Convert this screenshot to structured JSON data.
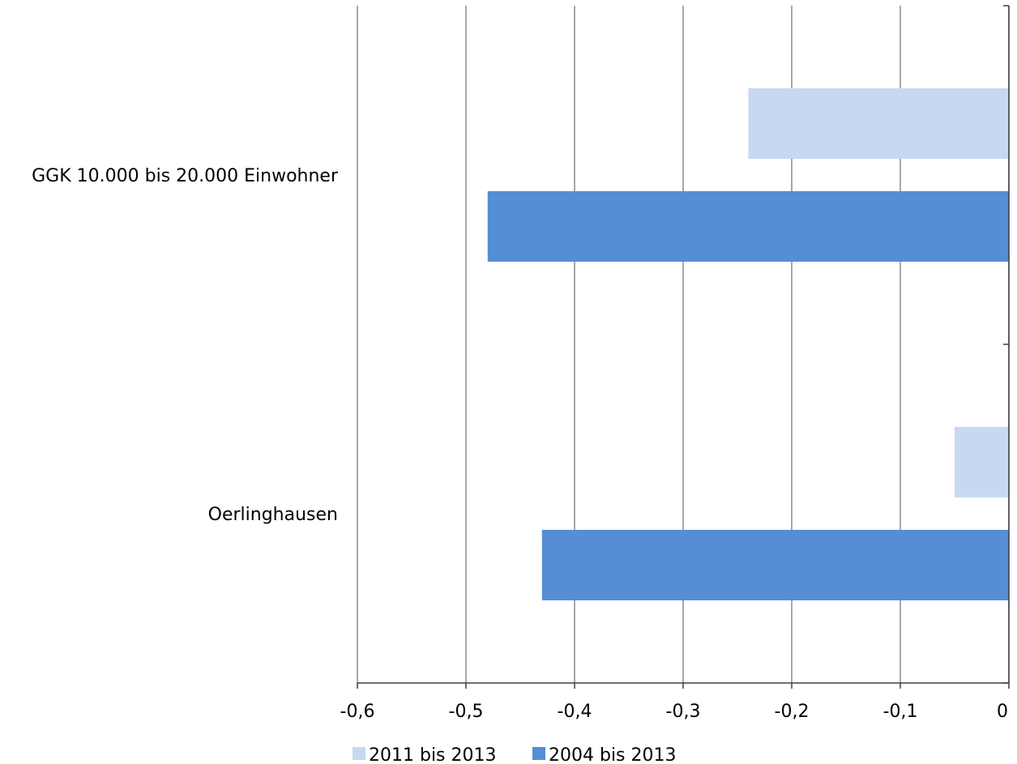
{
  "chart_data": {
    "type": "bar",
    "orientation": "horizontal",
    "title": "",
    "xlabel": "",
    "ylabel": "",
    "categories": [
      "GGK 10.000 bis 20.000 Einwohner",
      "Oerlinghausen"
    ],
    "series": [
      {
        "name": "2011 bis 2013",
        "color": "#c6d9f0",
        "values": [
          -0.24,
          -0.05
        ]
      },
      {
        "name": "2004 bis 2013",
        "color": "#558ed5",
        "values": [
          -0.48,
          -0.43
        ]
      }
    ],
    "xlim": [
      -0.6,
      0
    ],
    "xticks": [
      -0.6,
      -0.5,
      -0.4,
      -0.3,
      -0.2,
      -0.1,
      0
    ],
    "xtick_labels": [
      "-0,6",
      "-0,5",
      "-0,4",
      "-0,3",
      "-0,2",
      "-0,1",
      "0"
    ],
    "grid": true,
    "legend": "bottom",
    "colors": {
      "gridline": "#8c8c8c",
      "axis": "#404040"
    }
  }
}
